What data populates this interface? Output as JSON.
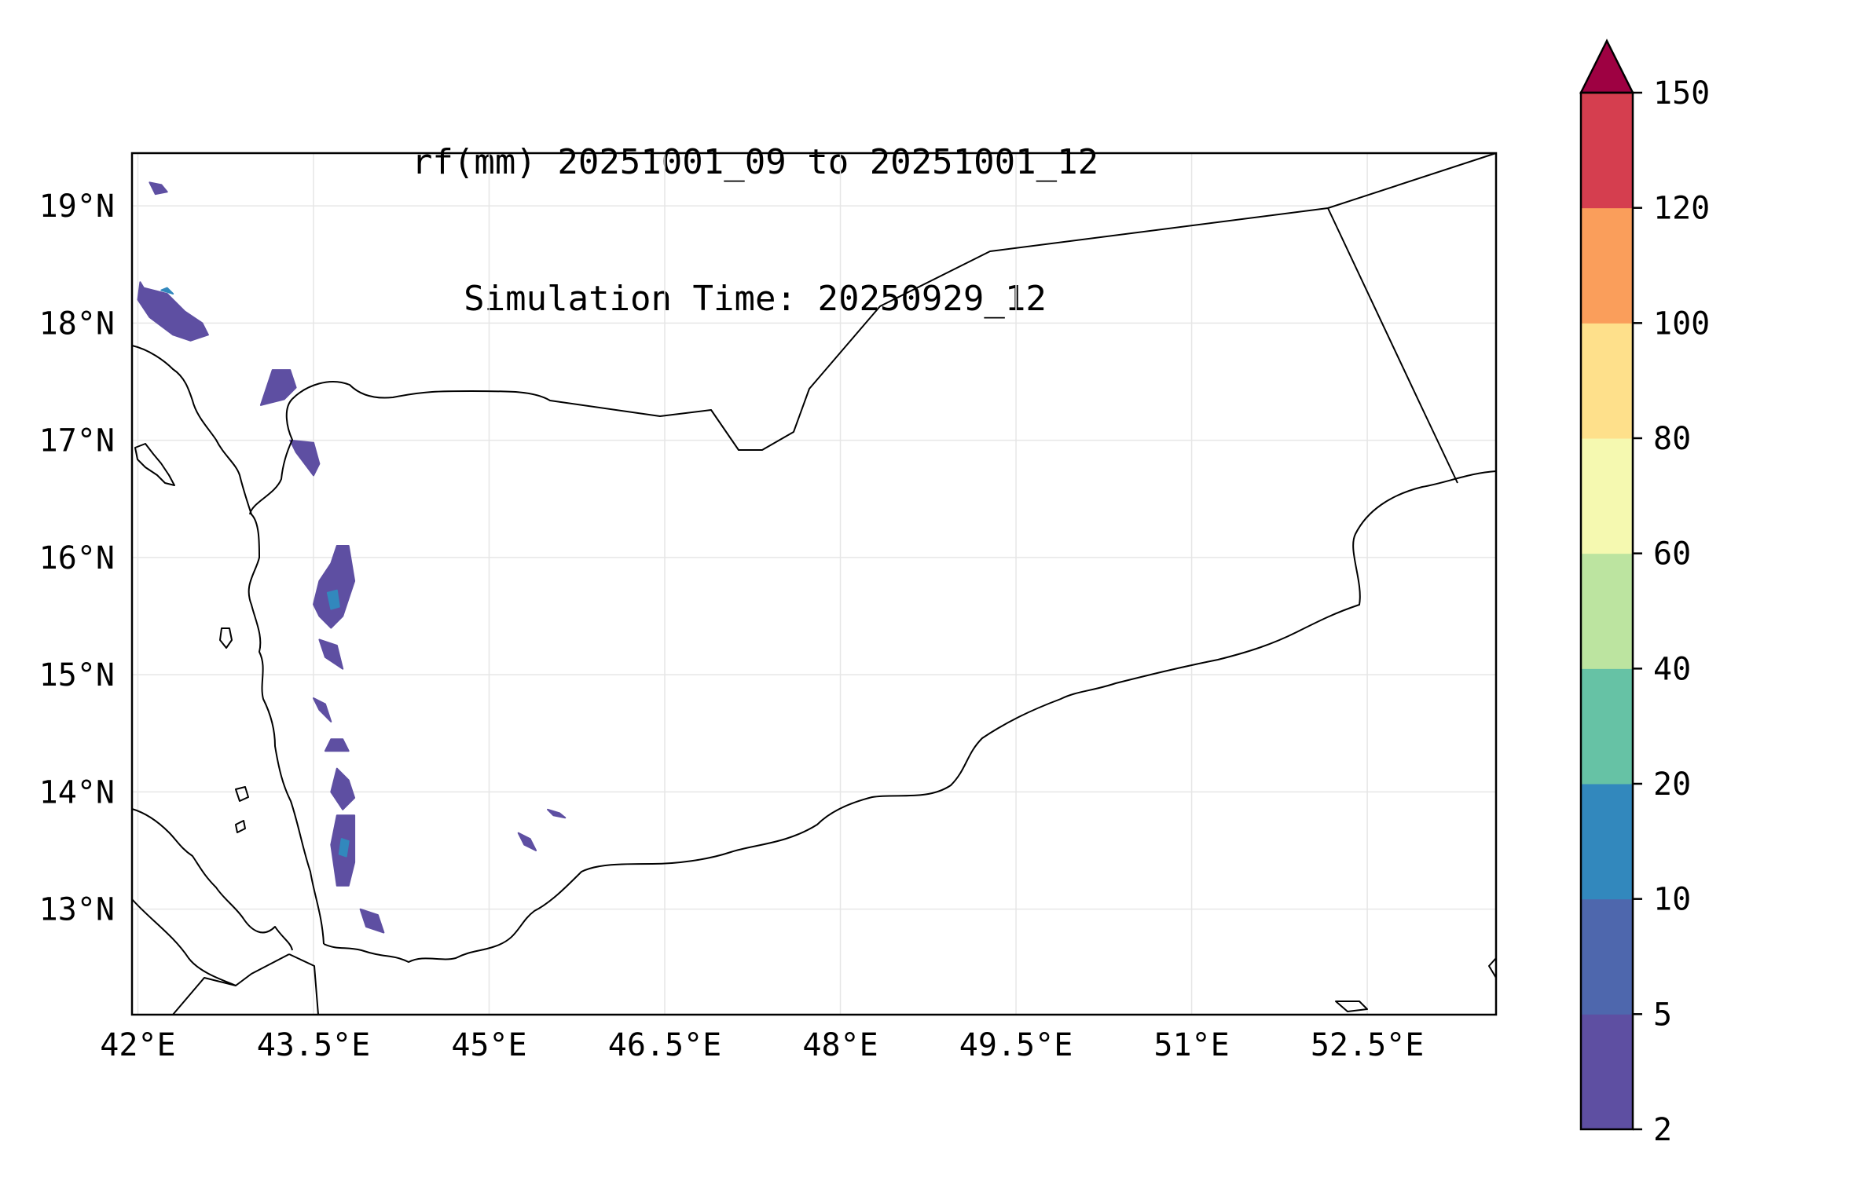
{
  "title_line1": "rf(mm) 20251001_09 to 20251001_12",
  "title_line2": "Simulation Time: 20250929_12",
  "map": {
    "lon_range": [
      41.95,
      53.6
    ],
    "lat_range": [
      12.1,
      19.45
    ],
    "lon_ticks": [
      {
        "value": 42.0,
        "label": "42°E"
      },
      {
        "value": 43.5,
        "label": "43.5°E"
      },
      {
        "value": 45.0,
        "label": "45°E"
      },
      {
        "value": 46.5,
        "label": "46.5°E"
      },
      {
        "value": 48.0,
        "label": "48°E"
      },
      {
        "value": 49.5,
        "label": "49.5°E"
      },
      {
        "value": 51.0,
        "label": "51°E"
      },
      {
        "value": 52.5,
        "label": "52.5°E"
      }
    ],
    "lat_ticks": [
      {
        "value": 13.0,
        "label": "13°N"
      },
      {
        "value": 14.0,
        "label": "14°N"
      },
      {
        "value": 15.0,
        "label": "15°N"
      },
      {
        "value": 16.0,
        "label": "16°N"
      },
      {
        "value": 17.0,
        "label": "17°N"
      },
      {
        "value": 18.0,
        "label": "18°N"
      },
      {
        "value": 19.0,
        "label": "19°N"
      }
    ],
    "gridlines": true,
    "features": [
      "coastline",
      "country-borders"
    ]
  },
  "colorbar": {
    "levels": [
      {
        "value": 2,
        "label": "2"
      },
      {
        "value": 5,
        "label": "5"
      },
      {
        "value": 10,
        "label": "10"
      },
      {
        "value": 20,
        "label": "20"
      },
      {
        "value": 40,
        "label": "40"
      },
      {
        "value": 60,
        "label": "60"
      },
      {
        "value": 80,
        "label": "80"
      },
      {
        "value": 100,
        "label": "100"
      },
      {
        "value": 120,
        "label": "120"
      },
      {
        "value": 150,
        "label": "150"
      }
    ],
    "colors": [
      "#5e4fa2",
      "#4e67ad",
      "#3288bd",
      "#66c2a5",
      "#bce4a0",
      "#f5f9b0",
      "#fee08b",
      "#fa9e5b",
      "#d53e4f"
    ],
    "extend_color": "#9e0142",
    "extend": "max"
  },
  "rain_cells": [
    {
      "level": "2-5",
      "lon": [
        42.05,
        42.25,
        42.4,
        42.55,
        42.6,
        42.45,
        42.3,
        42.1,
        42.0,
        42.02
      ],
      "lat": [
        18.3,
        18.25,
        18.1,
        18.0,
        17.9,
        17.85,
        17.9,
        18.05,
        18.2,
        18.35
      ]
    },
    {
      "level": "2-5",
      "lon": [
        42.1,
        42.2,
        42.25,
        42.15
      ],
      "lat": [
        19.2,
        19.18,
        19.12,
        19.1
      ]
    },
    {
      "level": "2-5",
      "lon": [
        43.15,
        43.3,
        43.35,
        43.25,
        43.05
      ],
      "lat": [
        17.6,
        17.6,
        17.45,
        17.35,
        17.3
      ]
    },
    {
      "level": "2-5",
      "lon": [
        43.3,
        43.5,
        43.55,
        43.5,
        43.35
      ],
      "lat": [
        17.0,
        16.98,
        16.8,
        16.7,
        16.9
      ]
    },
    {
      "level": "2-5",
      "lon": [
        43.7,
        43.8,
        43.85,
        43.75,
        43.65,
        43.55,
        43.5,
        43.55,
        43.65
      ],
      "lat": [
        16.1,
        16.1,
        15.8,
        15.5,
        15.4,
        15.5,
        15.6,
        15.8,
        15.95
      ]
    },
    {
      "level": "2-5",
      "lon": [
        43.55,
        43.7,
        43.75,
        43.6
      ],
      "lat": [
        15.3,
        15.25,
        15.05,
        15.15
      ]
    },
    {
      "level": "2-5",
      "lon": [
        43.5,
        43.6,
        43.65,
        43.55
      ],
      "lat": [
        14.8,
        14.75,
        14.6,
        14.7
      ]
    },
    {
      "level": "2-5",
      "lon": [
        43.65,
        43.75,
        43.8,
        43.6
      ],
      "lat": [
        14.45,
        14.45,
        14.35,
        14.35
      ]
    },
    {
      "level": "2-5",
      "lon": [
        43.7,
        43.8,
        43.85,
        43.75,
        43.65
      ],
      "lat": [
        14.2,
        14.1,
        13.95,
        13.85,
        14.0
      ]
    },
    {
      "level": "2-5",
      "lon": [
        43.7,
        43.85,
        43.85,
        43.8,
        43.7,
        43.65
      ],
      "lat": [
        13.8,
        13.8,
        13.4,
        13.2,
        13.2,
        13.55
      ]
    },
    {
      "level": "2-5",
      "lon": [
        43.9,
        44.05,
        44.1,
        43.95
      ],
      "lat": [
        13.0,
        12.95,
        12.8,
        12.85
      ]
    },
    {
      "level": "2-5",
      "lon": [
        45.25,
        45.35,
        45.4,
        45.3
      ],
      "lat": [
        13.65,
        13.6,
        13.5,
        13.55
      ]
    },
    {
      "level": "2-5",
      "lon": [
        45.5,
        45.6,
        45.65,
        45.55
      ],
      "lat": [
        13.85,
        13.82,
        13.78,
        13.8
      ]
    },
    {
      "level": "5-10",
      "lon": [
        42.2,
        42.25,
        42.3
      ],
      "lat": [
        18.28,
        18.3,
        18.25
      ]
    },
    {
      "level": "5-10",
      "lon": [
        43.62,
        43.7,
        43.72,
        43.65
      ],
      "lat": [
        15.7,
        15.72,
        15.58,
        15.56
      ]
    },
    {
      "level": "5-10",
      "lon": [
        43.74,
        43.8,
        43.78,
        43.72
      ],
      "lat": [
        13.6,
        13.58,
        13.45,
        13.47
      ]
    }
  ]
}
